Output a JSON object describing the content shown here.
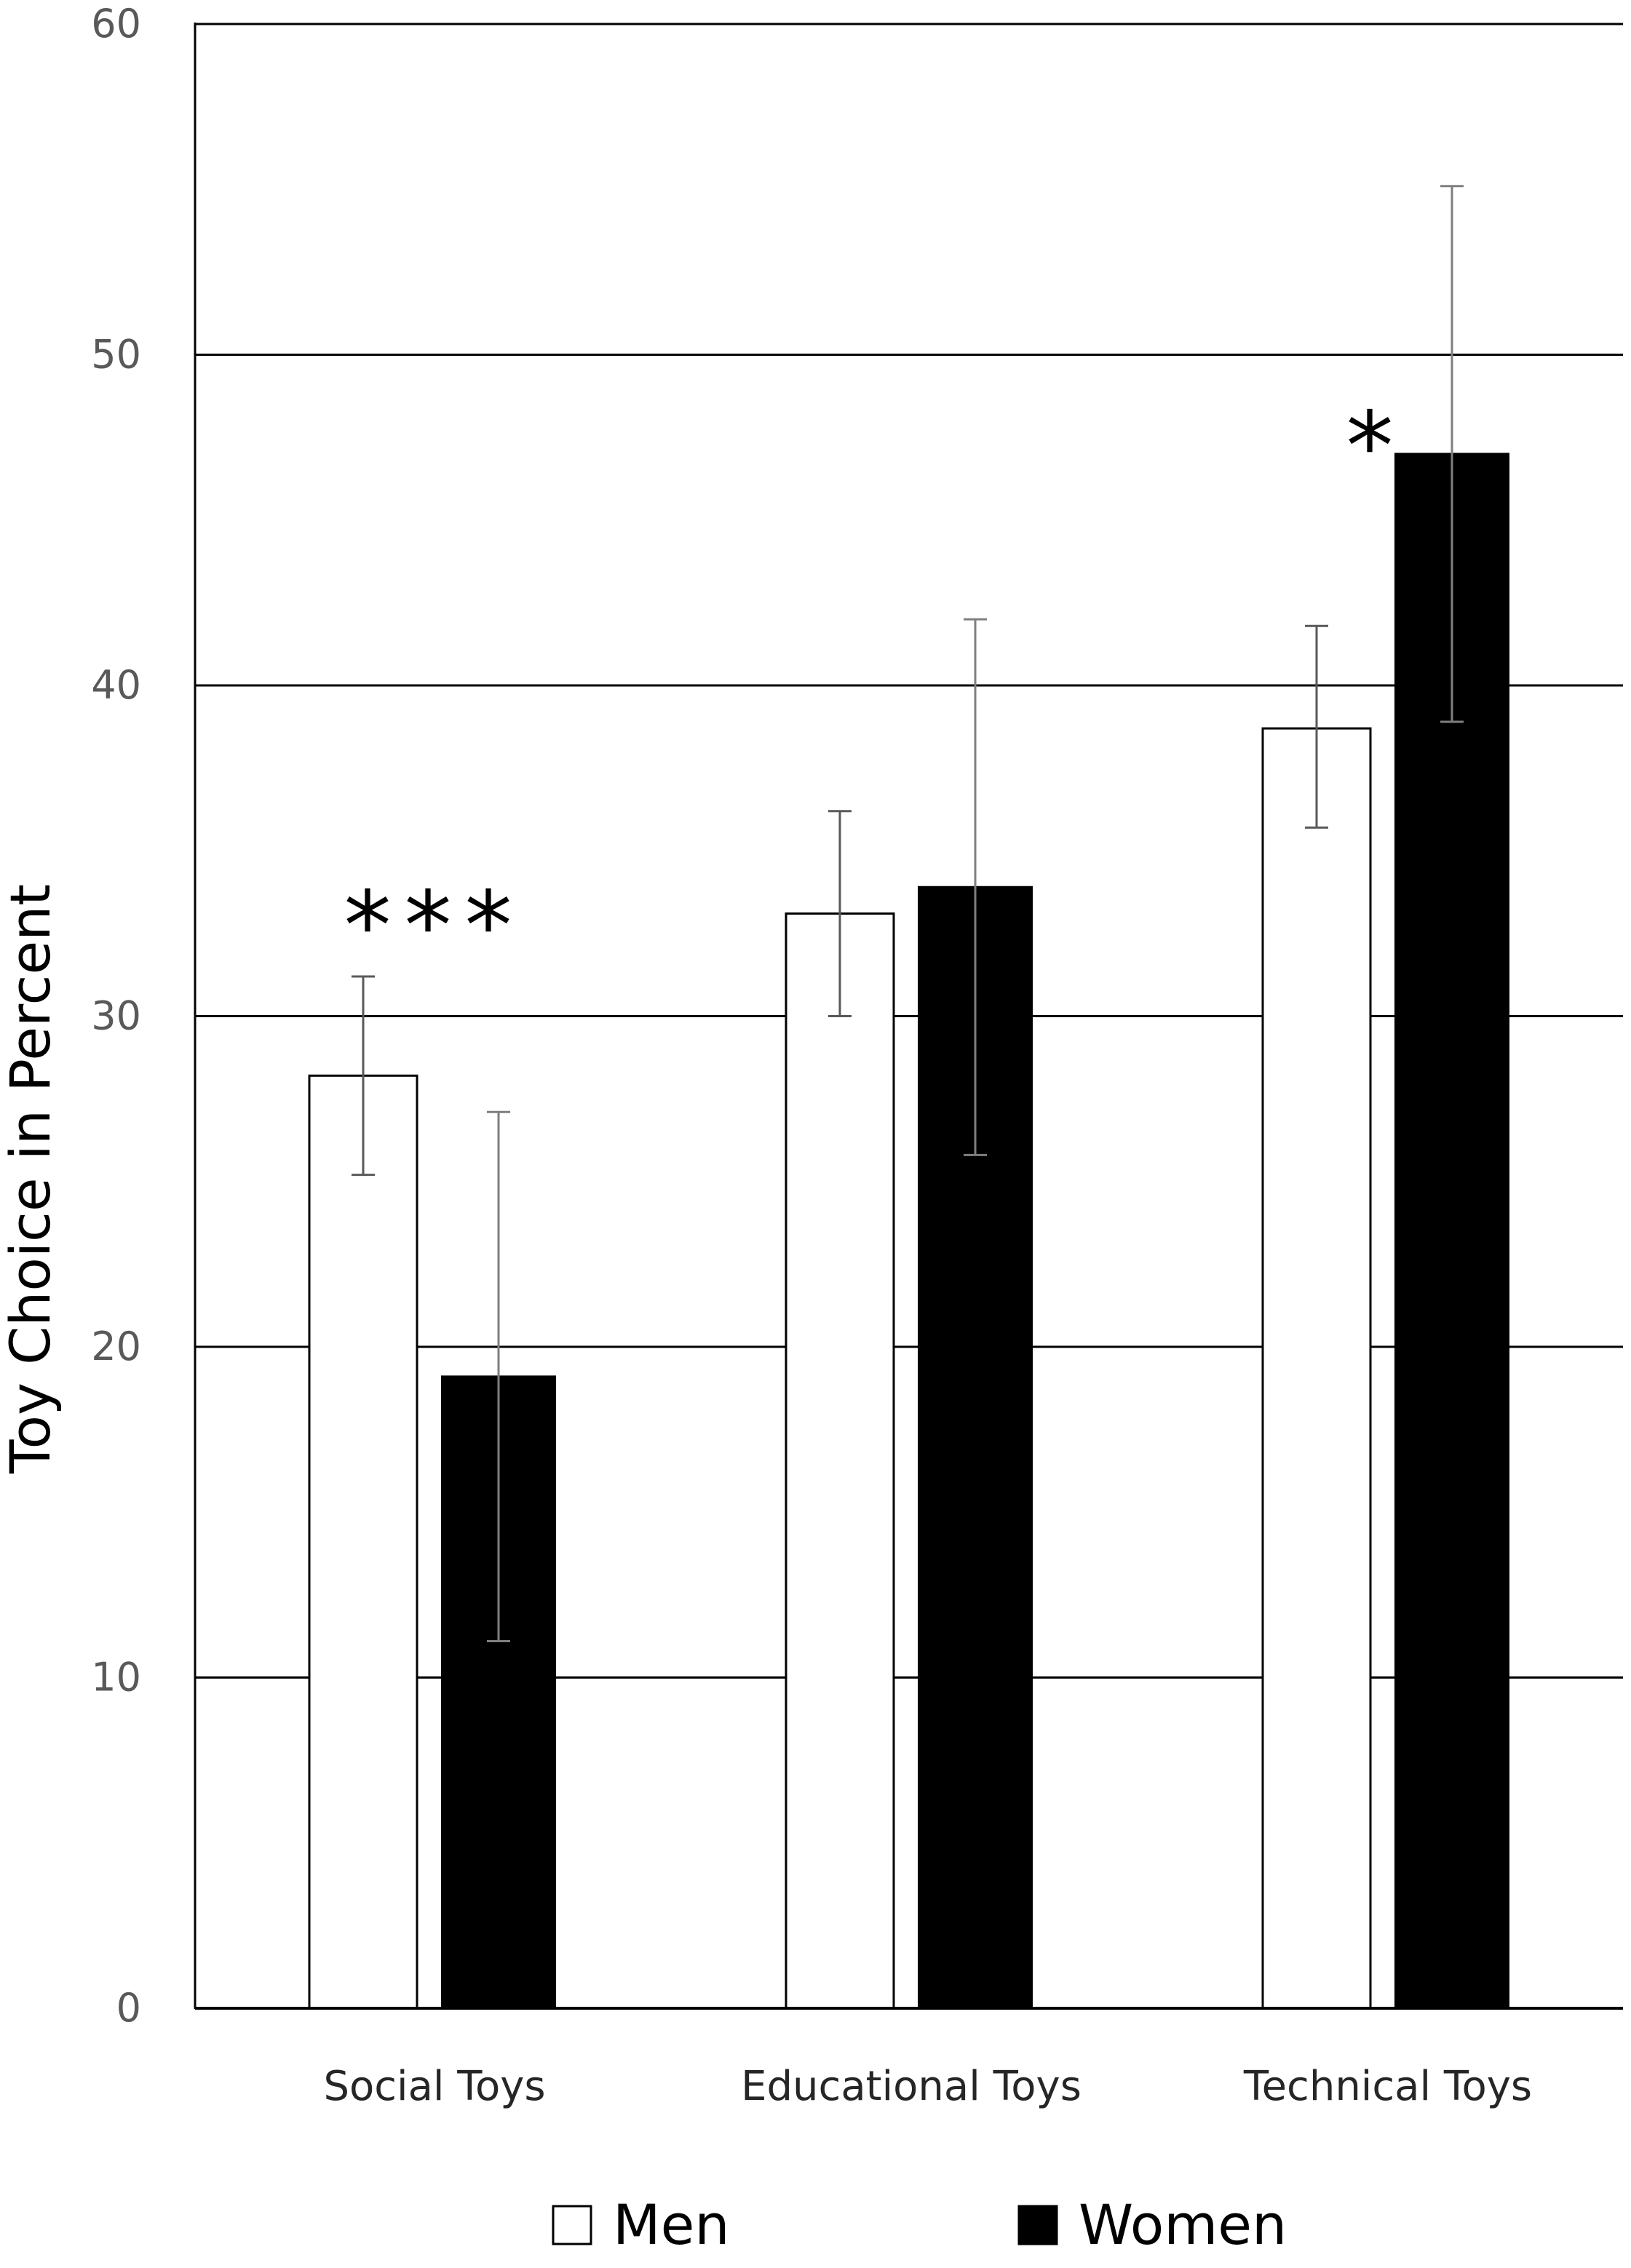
{
  "chart_data": {
    "type": "bar",
    "title": "",
    "xlabel": "",
    "ylabel": "Toy Choice in Percent",
    "ylim": [
      0,
      60
    ],
    "yticks": [
      0,
      10,
      20,
      30,
      40,
      50,
      60
    ],
    "grid": true,
    "legend_position": "bottom",
    "categories": [
      "Social Toys",
      "Educational Toys",
      "Technical Toys"
    ],
    "series": [
      {
        "name": "Men",
        "color": "#ffffff",
        "values": [
          28.2,
          33.1,
          38.7
        ],
        "error_low": [
          25.2,
          30.0,
          35.7
        ],
        "error_high": [
          31.2,
          36.2,
          41.8
        ]
      },
      {
        "name": "Women",
        "color": "#000000",
        "values": [
          19.1,
          33.9,
          47.0
        ],
        "error_low": [
          11.1,
          25.8,
          38.9
        ],
        "error_high": [
          27.1,
          42.0,
          55.1
        ]
      }
    ],
    "annotations": [
      {
        "category": "Social Toys",
        "text": "***",
        "y": 33.5
      },
      {
        "category": "Technical Toys",
        "text": "*",
        "y": 48.0
      }
    ]
  }
}
